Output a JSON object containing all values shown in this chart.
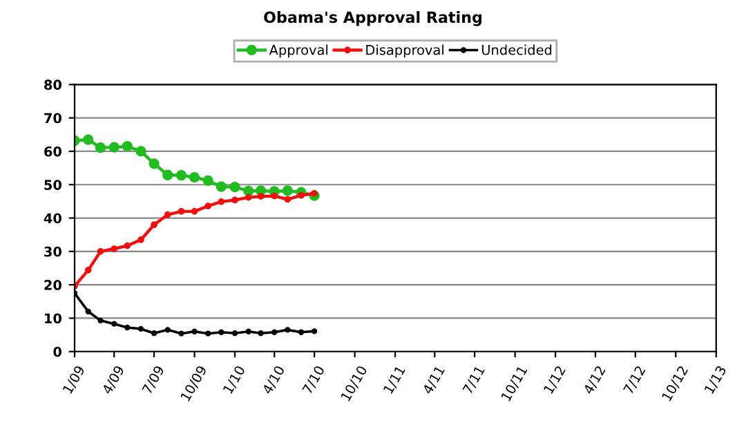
{
  "chart_data": {
    "type": "line",
    "title": "Obama's Approval Rating",
    "x": [
      "2009-01",
      "2009-02",
      "2009-03",
      "2009-04",
      "2009-05",
      "2009-06",
      "2009-07",
      "2009-08",
      "2009-09",
      "2009-10",
      "2009-11",
      "2009-12",
      "2010-01",
      "2010-02",
      "2010-03",
      "2010-04",
      "2010-05",
      "2010-06",
      "2010-07"
    ],
    "series": [
      {
        "name": "Approval",
        "color": "#22bb22",
        "values": [
          63.2,
          63.5,
          61.1,
          61.2,
          61.5,
          60,
          56.3,
          52.9,
          52.8,
          52.2,
          51.2,
          49.4,
          49.3,
          48.1,
          48.2,
          48,
          48.2,
          47.7,
          46.7
        ]
      },
      {
        "name": "Disapproval",
        "color": "#ee1111",
        "values": [
          19.6,
          24.4,
          30,
          30.8,
          31.7,
          33.5,
          38,
          41,
          42,
          42,
          43.6,
          44.9,
          45.4,
          46.2,
          46.5,
          46.6,
          45.6,
          46.8,
          47.4
        ]
      },
      {
        "name": "Undecided",
        "color": "#000000",
        "values": [
          17.5,
          12,
          9.3,
          8.3,
          7.2,
          6.8,
          5.5,
          6.5,
          5.4,
          6,
          5.4,
          5.8,
          5.5,
          6,
          5.5,
          5.8,
          6.5,
          5.8,
          6.1
        ]
      }
    ],
    "xlim": [
      "2009-01",
      "2013-01"
    ],
    "xticks": [
      {
        "value": "2009-01",
        "label": "1/09"
      },
      {
        "value": "2009-04",
        "label": "4/09"
      },
      {
        "value": "2009-07",
        "label": "7/09"
      },
      {
        "value": "2009-10",
        "label": "10/09"
      },
      {
        "value": "2010-01",
        "label": "1/10"
      },
      {
        "value": "2010-04",
        "label": "4/10"
      },
      {
        "value": "2010-07",
        "label": "7/10"
      },
      {
        "value": "2010-10",
        "label": "10/10"
      },
      {
        "value": "2011-01",
        "label": "1/11"
      },
      {
        "value": "2011-04",
        "label": "4/11"
      },
      {
        "value": "2011-07",
        "label": "7/11"
      },
      {
        "value": "2011-10",
        "label": "10/11"
      },
      {
        "value": "2012-01",
        "label": "1/12"
      },
      {
        "value": "2012-04",
        "label": "4/12"
      },
      {
        "value": "2012-07",
        "label": "7/12"
      },
      {
        "value": "2012-10",
        "label": "10/12"
      },
      {
        "value": "2013-01",
        "label": "1/13"
      }
    ],
    "ylim": [
      0,
      80
    ],
    "yticks": [
      0,
      10,
      20,
      30,
      40,
      50,
      60,
      70,
      80
    ],
    "grid": "y",
    "legend": "top",
    "marker": "circle",
    "line_style": "solid"
  }
}
